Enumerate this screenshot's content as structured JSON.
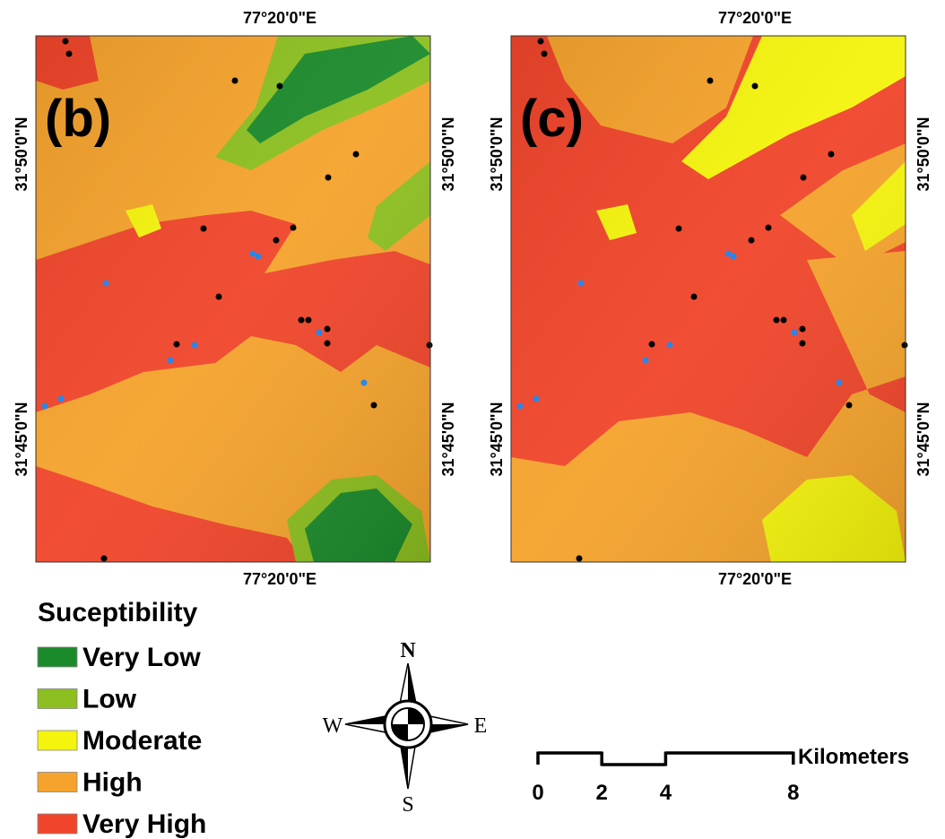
{
  "panels": [
    {
      "label": "(b)",
      "top_label": "77°20'0\"E",
      "bottom_label": "77°20'0\"E",
      "left_labels": [
        "31°50'0\"N",
        "31°45'0\"N"
      ],
      "right_labels": [
        "31°50'0\"N",
        "31°45'0\"N"
      ]
    },
    {
      "label": "(c)",
      "top_label": "77°20'0\"E",
      "bottom_label": "77°20'0\"E",
      "left_labels": [
        "31°50'0\"N",
        "31°45'0\"N"
      ],
      "right_labels": [
        "31°50'0\"N",
        "31°45'0\"N"
      ]
    }
  ],
  "legend": {
    "title": "Suceptibility",
    "items": [
      {
        "label": "Very Low",
        "color": "#1b8a2b"
      },
      {
        "label": "Low",
        "color": "#8cbf1f"
      },
      {
        "label": "Moderate",
        "color": "#f4f40c"
      },
      {
        "label": "High",
        "color": "#f5a32c"
      },
      {
        "label": "Very High",
        "color": "#f0452a"
      }
    ]
  },
  "compass": {
    "north": "N",
    "west": "W",
    "east": "E",
    "south": "S"
  },
  "scale_bar": {
    "ticks": [
      0,
      2,
      4,
      8
    ],
    "unit": "Kilometers"
  }
}
